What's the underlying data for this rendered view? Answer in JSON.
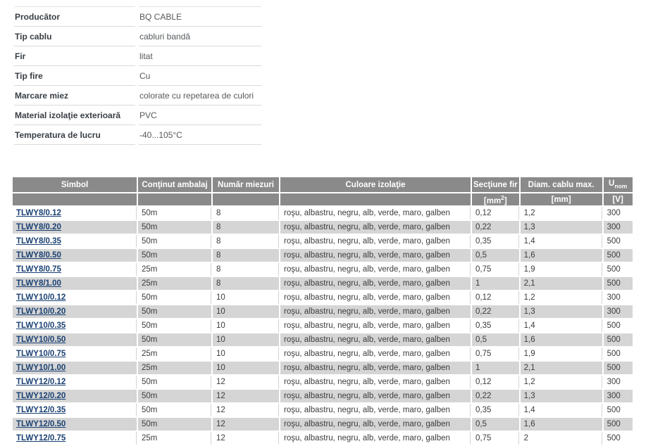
{
  "specs": {
    "rows": [
      {
        "label": "Producător",
        "value": "BQ CABLE"
      },
      {
        "label": "Tip cablu",
        "value": "cabluri bandă"
      },
      {
        "label": "Fir",
        "value": "litat"
      },
      {
        "label": "Tip fire",
        "value": "Cu"
      },
      {
        "label": "Marcare miez",
        "value": "colorate cu repetarea de culori"
      },
      {
        "label": "Material izolaţie exterioară",
        "value": "PVC"
      },
      {
        "label": "Temperatura de lucru",
        "value": "-40...105°C"
      }
    ]
  },
  "table": {
    "headers": {
      "simbol": "Simbol",
      "ambalaj": "Conţinut ambalaj",
      "miezuri": "Număr miezuri",
      "culoare": "Culoare izolaţie",
      "sectiune": "Secţiune fir",
      "diametru": "Diam. cablu max.",
      "unom_base": "U",
      "unom_sub": "nom",
      "unit_mm2_pre": "[mm",
      "unit_mm2_sup": "2",
      "unit_mm2_post": "]",
      "unit_mm": "[mm]",
      "unit_v": "[V]"
    },
    "rows": [
      {
        "simbol": "TLWY8/0.12",
        "ambalaj": "50m",
        "miezuri": "8",
        "culoare": "roşu, albastru, negru, alb, verde, maro, galben",
        "sectiune": "0,12",
        "diametru": "1,2",
        "unom": "300"
      },
      {
        "simbol": "TLWY8/0.20",
        "ambalaj": "50m",
        "miezuri": "8",
        "culoare": "roşu, albastru, negru, alb, verde, maro, galben",
        "sectiune": "0,22",
        "diametru": "1,3",
        "unom": "300"
      },
      {
        "simbol": "TLWY8/0.35",
        "ambalaj": "50m",
        "miezuri": "8",
        "culoare": "roşu, albastru, negru, alb, verde, maro, galben",
        "sectiune": "0,35",
        "diametru": "1,4",
        "unom": "500"
      },
      {
        "simbol": "TLWY8/0.50",
        "ambalaj": "50m",
        "miezuri": "8",
        "culoare": "roşu, albastru, negru, alb, verde, maro, galben",
        "sectiune": "0,5",
        "diametru": "1,6",
        "unom": "500"
      },
      {
        "simbol": "TLWY8/0.75",
        "ambalaj": "25m",
        "miezuri": "8",
        "culoare": "roşu, albastru, negru, alb, verde, maro, galben",
        "sectiune": "0,75",
        "diametru": "1,9",
        "unom": "500"
      },
      {
        "simbol": "TLWY8/1.00",
        "ambalaj": "25m",
        "miezuri": "8",
        "culoare": "roşu, albastru, negru, alb, verde, maro, galben",
        "sectiune": "1",
        "diametru": "2,1",
        "unom": "500"
      },
      {
        "simbol": "TLWY10/0.12",
        "ambalaj": "50m",
        "miezuri": "10",
        "culoare": "roşu, albastru, negru, alb, verde, maro, galben",
        "sectiune": "0,12",
        "diametru": "1,2",
        "unom": "300"
      },
      {
        "simbol": "TLWY10/0.20",
        "ambalaj": "50m",
        "miezuri": "10",
        "culoare": "roşu, albastru, negru, alb, verde, maro, galben",
        "sectiune": "0,22",
        "diametru": "1,3",
        "unom": "300"
      },
      {
        "simbol": "TLWY10/0.35",
        "ambalaj": "50m",
        "miezuri": "10",
        "culoare": "roşu, albastru, negru, alb, verde, maro, galben",
        "sectiune": "0,35",
        "diametru": "1,4",
        "unom": "500"
      },
      {
        "simbol": "TLWY10/0.50",
        "ambalaj": "50m",
        "miezuri": "10",
        "culoare": "roşu, albastru, negru, alb, verde, maro, galben",
        "sectiune": "0,5",
        "diametru": "1,6",
        "unom": "500"
      },
      {
        "simbol": "TLWY10/0.75",
        "ambalaj": "25m",
        "miezuri": "10",
        "culoare": "roşu, albastru, negru, alb, verde, maro, galben",
        "sectiune": "0,75",
        "diametru": "1,9",
        "unom": "500"
      },
      {
        "simbol": "TLWY10/1.00",
        "ambalaj": "25m",
        "miezuri": "10",
        "culoare": "roşu, albastru, negru, alb, verde, maro, galben",
        "sectiune": "1",
        "diametru": "2,1",
        "unom": "500"
      },
      {
        "simbol": "TLWY12/0.12",
        "ambalaj": "50m",
        "miezuri": "12",
        "culoare": "roşu, albastru, negru, alb, verde, maro, galben",
        "sectiune": "0,12",
        "diametru": "1,2",
        "unom": "300"
      },
      {
        "simbol": "TLWY12/0.20",
        "ambalaj": "50m",
        "miezuri": "12",
        "culoare": "roşu, albastru, negru, alb, verde, maro, galben",
        "sectiune": "0,22",
        "diametru": "1,3",
        "unom": "300"
      },
      {
        "simbol": "TLWY12/0.35",
        "ambalaj": "50m",
        "miezuri": "12",
        "culoare": "roşu, albastru, negru, alb, verde, maro, galben",
        "sectiune": "0,35",
        "diametru": "1,4",
        "unom": "500"
      },
      {
        "simbol": "TLWY12/0.50",
        "ambalaj": "50m",
        "miezuri": "12",
        "culoare": "roşu, albastru, negru, alb, verde, maro, galben",
        "sectiune": "0,5",
        "diametru": "1,6",
        "unom": "500"
      },
      {
        "simbol": "TLWY12/0.75",
        "ambalaj": "25m",
        "miezuri": "12",
        "culoare": "roşu, albastru, negru, alb, verde, maro, galben",
        "sectiune": "0,75",
        "diametru": "2",
        "unom": "500"
      }
    ]
  },
  "colors": {
    "header_bg": "#8a8a8a",
    "header_text": "#ffffff",
    "row_alt_bg": "#d5d5d5",
    "link": "#1a4173",
    "divider": "#d9d9d9"
  }
}
